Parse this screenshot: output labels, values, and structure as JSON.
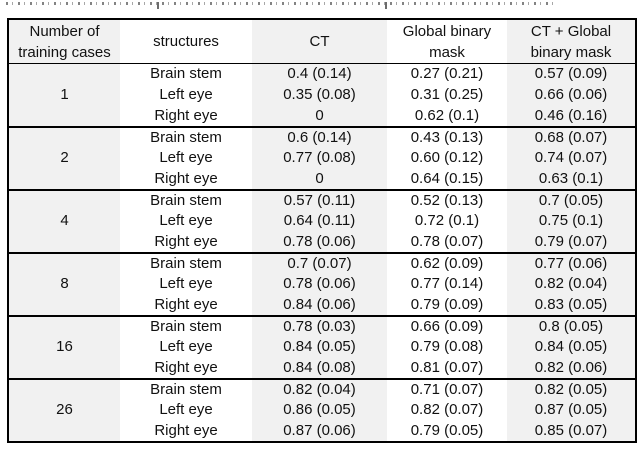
{
  "table": {
    "headers": [
      "Number of\ntraining cases",
      "structures",
      "CT",
      "Global binary\nmask",
      "CT + Global\nbinary mask"
    ],
    "colors": {
      "shaded_column_bg": "#f1f1f1",
      "border": "#000000",
      "text": "#111111"
    },
    "groups": [
      {
        "training_cases": "1",
        "rows": [
          {
            "structure": "Brain stem",
            "ct": "0.4 (0.14)",
            "global_mask": "0.27 (0.21)",
            "ct_global_mask": "0.57 (0.09)"
          },
          {
            "structure": "Left eye",
            "ct": "0.35 (0.08)",
            "global_mask": "0.31 (0.25)",
            "ct_global_mask": "0.66 (0.06)"
          },
          {
            "structure": "Right eye",
            "ct": "0",
            "global_mask": "0.62 (0.1)",
            "ct_global_mask": "0.46 (0.16)"
          }
        ]
      },
      {
        "training_cases": "2",
        "rows": [
          {
            "structure": "Brain stem",
            "ct": "0.6 (0.14)",
            "global_mask": "0.43 (0.13)",
            "ct_global_mask": "0.68 (0.07)"
          },
          {
            "structure": "Left eye",
            "ct": "0.77 (0.08)",
            "global_mask": "0.60 (0.12)",
            "ct_global_mask": "0.74 (0.07)"
          },
          {
            "structure": "Right eye",
            "ct": "0",
            "global_mask": "0.64 (0.15)",
            "ct_global_mask": "0.63 (0.1)"
          }
        ]
      },
      {
        "training_cases": "4",
        "rows": [
          {
            "structure": "Brain stem",
            "ct": "0.57 (0.11)",
            "global_mask": "0.52 (0.13)",
            "ct_global_mask": "0.7 (0.05)"
          },
          {
            "structure": "Left eye",
            "ct": "0.64 (0.11)",
            "global_mask": "0.72 (0.1)",
            "ct_global_mask": "0.75 (0.1)"
          },
          {
            "structure": "Right eye",
            "ct": "0.78 (0.06)",
            "global_mask": "0.78 (0.07)",
            "ct_global_mask": "0.79 (0.07)"
          }
        ]
      },
      {
        "training_cases": "8",
        "rows": [
          {
            "structure": "Brain stem",
            "ct": "0.7 (0.07)",
            "global_mask": "0.62 (0.09)",
            "ct_global_mask": "0.77 (0.06)"
          },
          {
            "structure": "Left eye",
            "ct": "0.78 (0.06)",
            "global_mask": "0.77 (0.14)",
            "ct_global_mask": "0.82 (0.04)"
          },
          {
            "structure": "Right eye",
            "ct": "0.84 (0.06)",
            "global_mask": "0.79 (0.09)",
            "ct_global_mask": "0.83 (0.05)"
          }
        ]
      },
      {
        "training_cases": "16",
        "rows": [
          {
            "structure": "Brain stem",
            "ct": "0.78 (0.03)",
            "global_mask": "0.66 (0.09)",
            "ct_global_mask": "0.8 (0.05)"
          },
          {
            "structure": "Left eye",
            "ct": "0.84 (0.05)",
            "global_mask": "0.79 (0.08)",
            "ct_global_mask": "0.84 (0.05)"
          },
          {
            "structure": "Right eye",
            "ct": "0.84 (0.08)",
            "global_mask": "0.81 (0.07)",
            "ct_global_mask": "0.82 (0.06)"
          }
        ]
      },
      {
        "training_cases": "26",
        "rows": [
          {
            "structure": "Brain stem",
            "ct": "0.82 (0.04)",
            "global_mask": "0.71 (0.07)",
            "ct_global_mask": "0.82 (0.05)"
          },
          {
            "structure": "Left eye",
            "ct": "0.86 (0.05)",
            "global_mask": "0.82 (0.07)",
            "ct_global_mask": "0.87 (0.05)"
          },
          {
            "structure": "Right eye",
            "ct": "0.87 (0.06)",
            "global_mask": "0.79 (0.05)",
            "ct_global_mask": "0.85 (0.07)"
          }
        ]
      }
    ]
  }
}
